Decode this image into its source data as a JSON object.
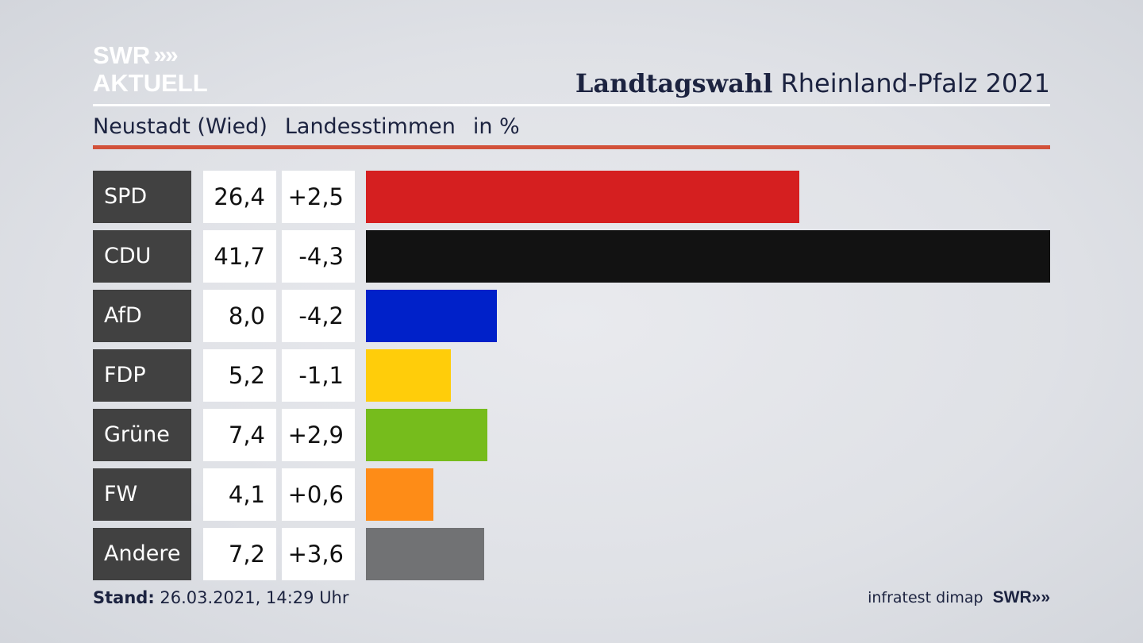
{
  "logo": {
    "line1": "SWR",
    "chevrons": "»",
    "line2": "AKTUELL"
  },
  "header": {
    "title_bold": "Landtagswahl",
    "title_rest": "Rheinland-Pfalz 2021"
  },
  "subtitle": {
    "district": "Neustadt (Wied)",
    "vote_type": "Landesstimmen",
    "unit": "in %"
  },
  "footer": {
    "stand_label": "Stand:",
    "stand_value": "26.03.2021, 14:29 Uhr",
    "source": "infratest dimap",
    "brand": "SWR",
    "brand_chevrons": "»"
  },
  "colors": {
    "accent_rule": "#d2513a",
    "label_bg": "#414141"
  },
  "chart_data": {
    "type": "bar",
    "orientation": "horizontal",
    "categories": [
      "SPD",
      "CDU",
      "AfD",
      "FDP",
      "Grüne",
      "FW",
      "Andere"
    ],
    "series": [
      {
        "values": [
          26.4,
          41.7,
          8.0,
          5.2,
          7.4,
          4.1,
          7.2
        ]
      }
    ],
    "value_labels": [
      "26,4",
      "41,7",
      "8,0",
      "5,2",
      "7,4",
      "4,1",
      "7,2"
    ],
    "diff_labels": [
      "+2,5",
      "-4,3",
      "-4,2",
      "-1,1",
      "+2,9",
      "+0,6",
      "+3,6"
    ],
    "diffs": [
      2.5,
      -4.3,
      -4.2,
      -1.1,
      2.9,
      0.6,
      3.6
    ],
    "bar_colors": [
      "#d51f20",
      "#121212",
      "#0021c9",
      "#ffcd0a",
      "#76bc1c",
      "#fe8c17",
      "#717274"
    ],
    "title": "Landtagswahl Rheinland-Pfalz 2021",
    "xlim": [
      0,
      41.7
    ],
    "grid": false
  }
}
